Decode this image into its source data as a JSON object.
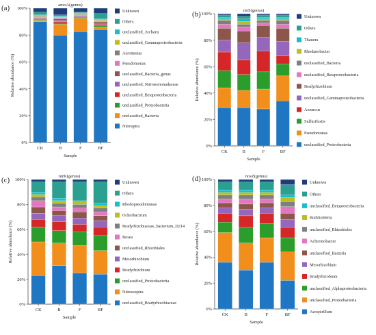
{
  "chart_data": [
    {
      "type": "bar",
      "stacked": true,
      "panel_label": "(a)",
      "title": "amoA(genus)",
      "xlabel": "Sample",
      "ylabel": "Relative abundance (%)",
      "ylim": [
        0,
        100
      ],
      "yticks": [
        "0%",
        "20%",
        "40%",
        "60%",
        "80%",
        "100%"
      ],
      "categories": [
        "CK",
        "B",
        "F",
        "BF"
      ],
      "legend_position": "right",
      "series": [
        {
          "name": "Nitrospira",
          "color": "#1f77c4",
          "values": [
            90,
            80,
            83,
            84
          ]
        },
        {
          "name": "unclassified_Bacteria",
          "color": "#f28e1c",
          "values": [
            1,
            8,
            10,
            2
          ]
        },
        {
          "name": "unclassified_Proteobacteria",
          "color": "#2a9d2a",
          "values": [
            0.5,
            1,
            0.5,
            1
          ]
        },
        {
          "name": "unclassified_Betaproteobacteria",
          "color": "#d62728",
          "values": [
            0.5,
            1,
            0.5,
            1
          ]
        },
        {
          "name": "unclassified_Nitrosomonadaceae",
          "color": "#9467bd",
          "values": [
            0.5,
            1,
            0.5,
            1
          ]
        },
        {
          "name": "unclassified_Bacteria_genus",
          "color": "#8c564b",
          "values": [
            0.5,
            1,
            0.5,
            1
          ]
        },
        {
          "name": "Pseudomonas",
          "color": "#e377c2",
          "values": [
            0.5,
            0.5,
            0.5,
            0.5
          ]
        },
        {
          "name": "Aeromonas",
          "color": "#7f7f7f",
          "values": [
            0.5,
            0.5,
            0.5,
            0.5
          ]
        },
        {
          "name": "unclassified_Gammaproteobacteria",
          "color": "#bcbd22",
          "values": [
            0.5,
            0.5,
            0.5,
            0.5
          ]
        },
        {
          "name": "unclassified_Archaea",
          "color": "#17becf",
          "values": [
            0.5,
            0.5,
            0.5,
            0.5
          ]
        },
        {
          "name": "Others",
          "color": "#2ca090",
          "values": [
            2,
            1,
            0.5,
            4
          ]
        },
        {
          "name": "Unknown",
          "color": "#1f3d7a",
          "values": [
            3,
            5,
            3,
            4
          ]
        }
      ]
    },
    {
      "type": "bar",
      "stacked": true,
      "panel_label": "(b)",
      "title": "nirS(genus)",
      "xlabel": "Sample",
      "ylabel": "Relative abundance (%)",
      "ylim": [
        0,
        100
      ],
      "yticks": [
        "0%",
        "20%",
        "40%",
        "60%",
        "80%",
        "100%"
      ],
      "categories": [
        "CK",
        "B",
        "F",
        "BF"
      ],
      "legend_position": "right",
      "series": [
        {
          "name": "unclassified_Proteobacteria",
          "color": "#1f77c4",
          "values": [
            29,
            29,
            28,
            34
          ]
        },
        {
          "name": "Pseudomonas",
          "color": "#f28e1c",
          "values": [
            15,
            13,
            15,
            19
          ]
        },
        {
          "name": "Sulfurifustis",
          "color": "#2a9d2a",
          "values": [
            13,
            12,
            13,
            9
          ]
        },
        {
          "name": "Azoarcus",
          "color": "#d62728",
          "values": [
            14,
            11,
            16,
            6
          ]
        },
        {
          "name": "unclassified_Gammaproteobacteria",
          "color": "#9467bd",
          "values": [
            9,
            13,
            10,
            11
          ]
        },
        {
          "name": "Bradyrhizobium",
          "color": "#8c564b",
          "values": [
            9,
            9,
            9,
            10
          ]
        },
        {
          "name": "unclassified_Betaproteobacteria",
          "color": "#e377c2",
          "values": [
            3,
            3,
            2,
            3
          ]
        },
        {
          "name": "unclassified_Bacteria",
          "color": "#7f7f7f",
          "values": [
            3,
            2,
            2,
            3
          ]
        },
        {
          "name": "Rhodanobacter",
          "color": "#bcbd22",
          "values": [
            1,
            2,
            1,
            1
          ]
        },
        {
          "name": "Thauera",
          "color": "#17becf",
          "values": [
            1,
            2,
            1,
            1
          ]
        },
        {
          "name": "Others",
          "color": "#2ca090",
          "values": [
            2,
            2,
            2,
            2
          ]
        },
        {
          "name": "Unknown",
          "color": "#1f3d7a",
          "values": [
            1,
            2,
            1,
            1
          ]
        }
      ]
    },
    {
      "type": "bar",
      "stacked": true,
      "panel_label": "(c)",
      "title": "nirK(genus)",
      "xlabel": "Sample",
      "ylabel": "Relative abundance (%)",
      "ylim": [
        0,
        100
      ],
      "yticks": [
        "0%",
        "20%",
        "40%",
        "60%",
        "80%",
        "100%"
      ],
      "categories": [
        "CK",
        "B",
        "F",
        "BF"
      ],
      "legend_position": "right",
      "series": [
        {
          "name": "unclassified_Bradyrhizobiaceae",
          "color": "#1f77c4",
          "values": [
            23,
            31,
            25,
            24
          ]
        },
        {
          "name": "Nitrosospira",
          "color": "#f28e1c",
          "values": [
            27,
            18,
            22,
            19
          ]
        },
        {
          "name": "unclassified_Proteobacteria",
          "color": "#2a9d2a",
          "values": [
            12,
            10,
            11,
            12
          ]
        },
        {
          "name": "Bradyrhizobium",
          "color": "#d62728",
          "values": [
            6,
            7,
            6,
            7
          ]
        },
        {
          "name": "Mesorhizobium",
          "color": "#9467bd",
          "values": [
            5,
            5,
            5,
            5
          ]
        },
        {
          "name": "unclassified_Rhizobiales",
          "color": "#8c564b",
          "values": [
            5,
            4,
            5,
            4
          ]
        },
        {
          "name": "Bosea",
          "color": "#e377c2",
          "values": [
            5,
            3,
            3,
            3
          ]
        },
        {
          "name": "Bradyrhizobiaceae_bacterium_D214",
          "color": "#7f7f7f",
          "values": [
            3,
            3,
            3,
            3
          ]
        },
        {
          "name": "Ochrobactrum",
          "color": "#bcbd22",
          "values": [
            2,
            2,
            2,
            2
          ]
        },
        {
          "name": "Rhodopseudomonas",
          "color": "#17becf",
          "values": [
            2,
            2,
            1,
            2
          ]
        },
        {
          "name": "Others",
          "color": "#2ca090",
          "values": [
            8,
            13,
            15,
            17
          ]
        },
        {
          "name": "Unknown",
          "color": "#1f3d7a",
          "values": [
            2,
            2,
            2,
            2
          ]
        }
      ]
    },
    {
      "type": "bar",
      "stacked": true,
      "panel_label": "(d)",
      "title": "nosZ(genus)",
      "xlabel": "Sample",
      "ylabel": "Relative abundance (%)",
      "ylim": [
        0,
        100
      ],
      "yticks": [
        "0%",
        "20%",
        "40%",
        "60%",
        "80%",
        "100%"
      ],
      "categories": [
        "CK",
        "B",
        "F",
        "BF"
      ],
      "legend_position": "right",
      "series": [
        {
          "name": "Azospirillum",
          "color": "#1f77c4",
          "values": [
            36,
            30,
            36,
            22
          ]
        },
        {
          "name": "unclassified_Proteobacteria",
          "color": "#f28e1c",
          "values": [
            23,
            21,
            19,
            22
          ]
        },
        {
          "name": "unclassified_Alphaproteobacteria",
          "color": "#2a9d2a",
          "values": [
            8,
            12,
            11,
            11
          ]
        },
        {
          "name": "Bradyrhizobium",
          "color": "#d62728",
          "values": [
            7,
            9,
            8,
            8
          ]
        },
        {
          "name": "Mesorhizobium",
          "color": "#9467bd",
          "values": [
            4,
            5,
            4,
            6
          ]
        },
        {
          "name": "unclassified_Bacteria",
          "color": "#8c564b",
          "values": [
            4,
            4,
            4,
            5
          ]
        },
        {
          "name": "Achromobacter",
          "color": "#e377c2",
          "values": [
            3,
            4,
            3,
            5
          ]
        },
        {
          "name": "unclassified_Rhizobiales",
          "color": "#7f7f7f",
          "values": [
            3,
            3,
            3,
            4
          ]
        },
        {
          "name": "Burkholderia",
          "color": "#bcbd22",
          "values": [
            2,
            2,
            2,
            3
          ]
        },
        {
          "name": "unclassified_Betaproteobacteria",
          "color": "#17becf",
          "values": [
            2,
            2,
            2,
            2
          ]
        },
        {
          "name": "Others",
          "color": "#2ca090",
          "values": [
            6,
            6,
            6,
            8
          ]
        },
        {
          "name": "Unknown",
          "color": "#1f3d7a",
          "values": [
            2,
            2,
            2,
            4
          ]
        }
      ]
    }
  ]
}
